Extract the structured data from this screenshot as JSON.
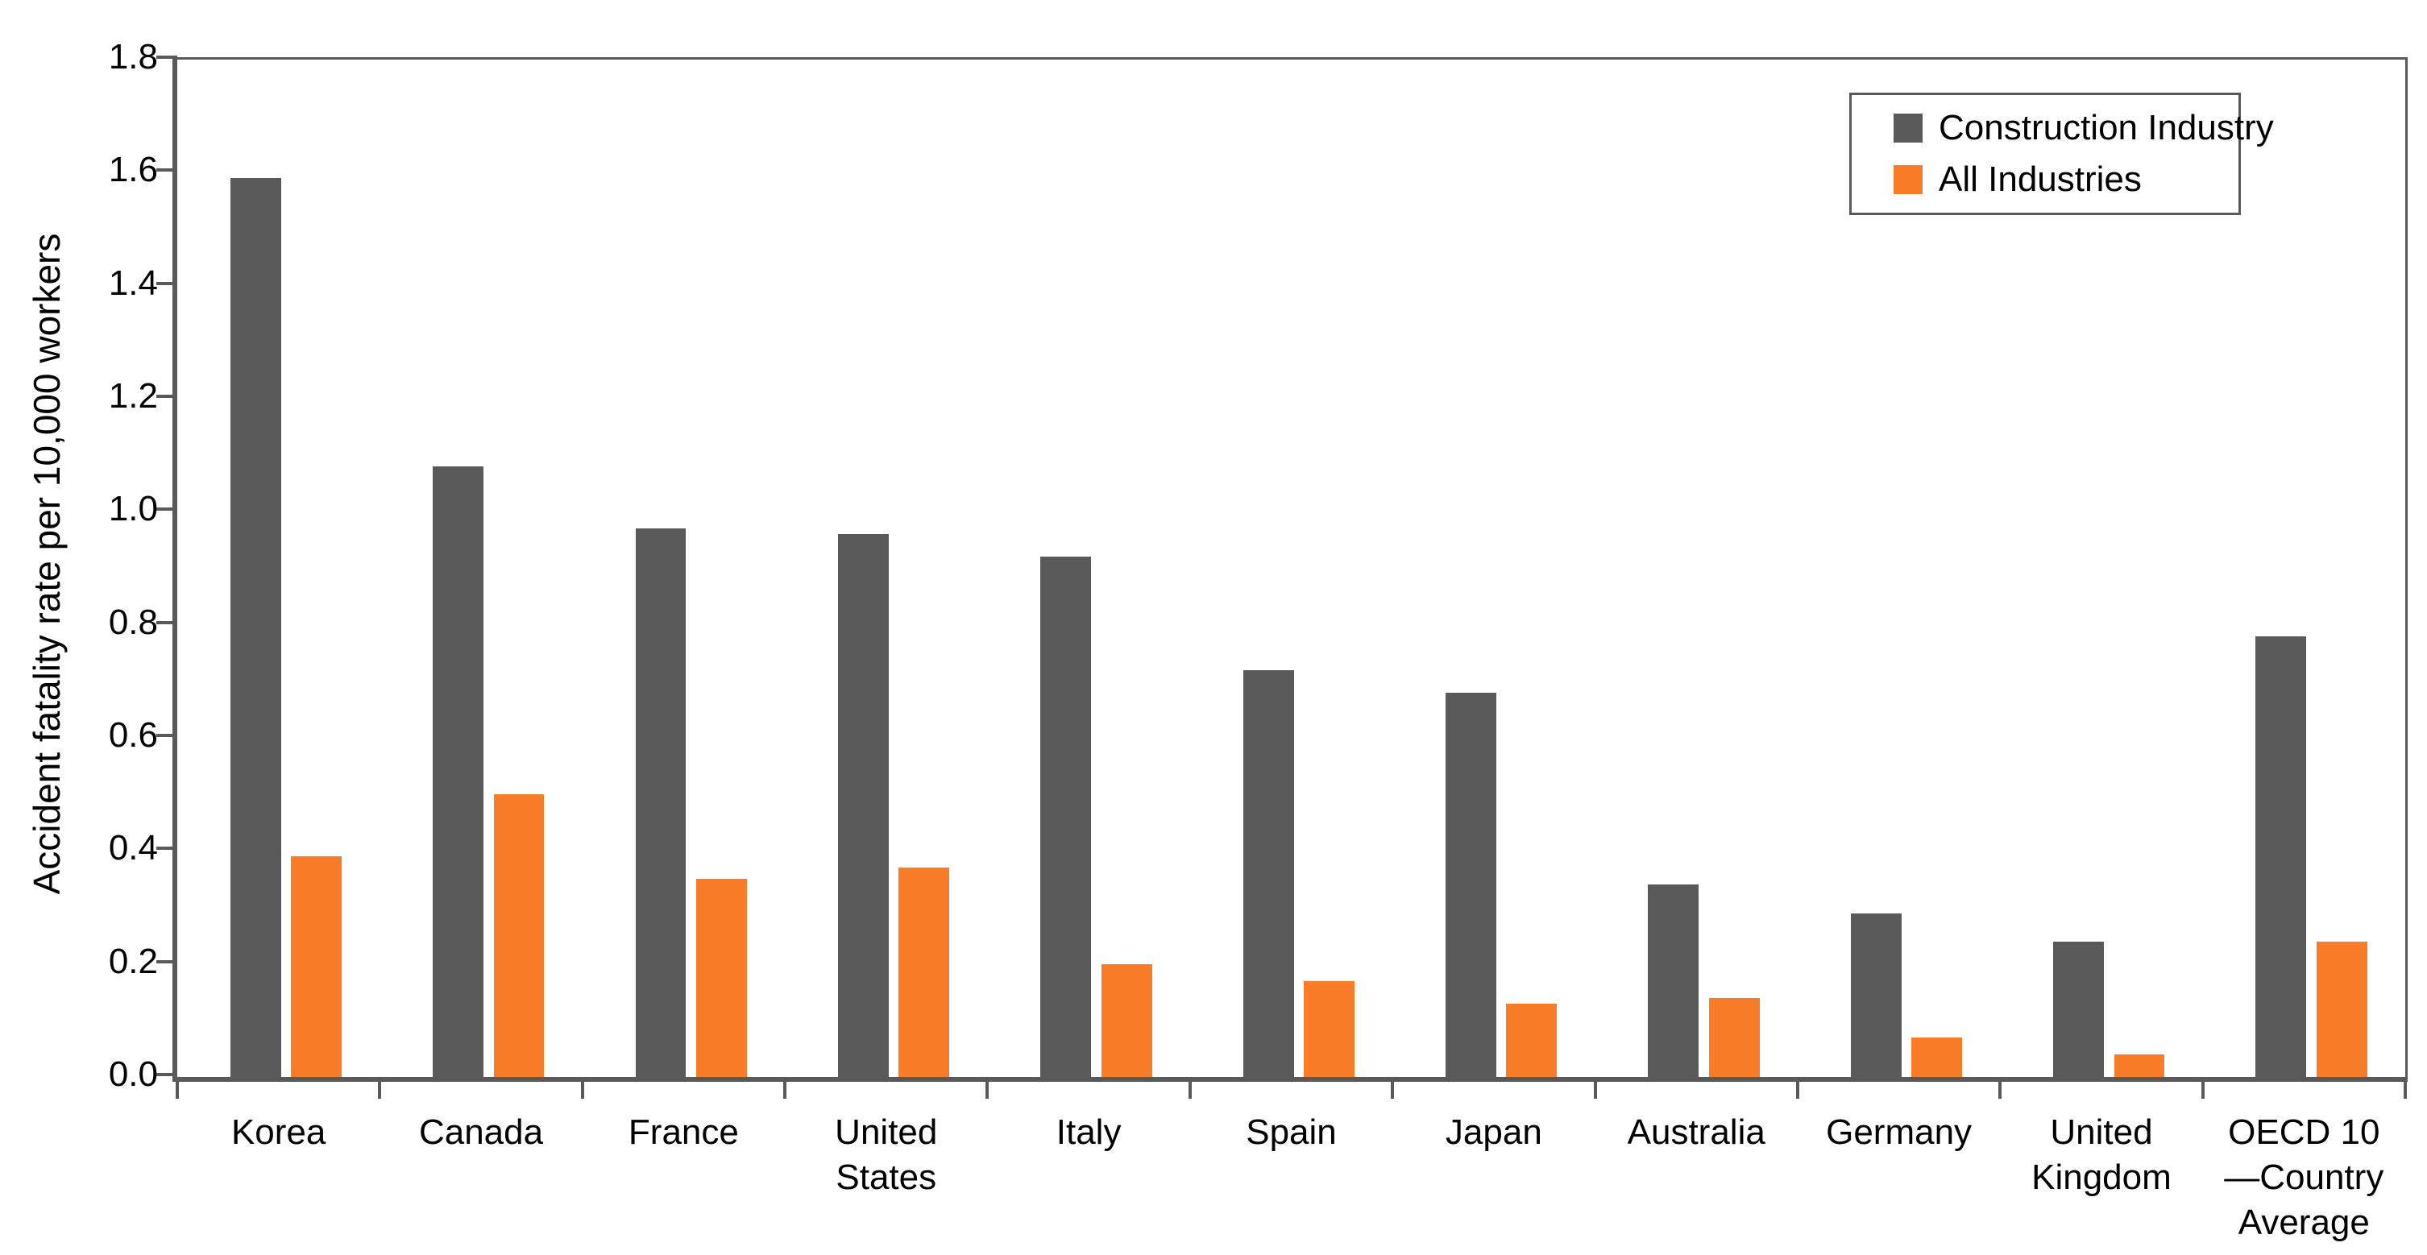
{
  "chart_data": {
    "type": "bar",
    "title": "",
    "categories": [
      "Korea",
      "Canada",
      "France",
      "United States",
      "Italy",
      "Spain",
      "Japan",
      "Australia",
      "Germany",
      "United Kingdom",
      "OECD 10—Country Average"
    ],
    "series": [
      {
        "name": "Construction Industry",
        "color": "#595959",
        "values": [
          1.59,
          1.08,
          0.97,
          0.96,
          0.92,
          0.72,
          0.68,
          0.34,
          0.29,
          0.24,
          0.78
        ]
      },
      {
        "name": "All Industries",
        "color": "#F97D28",
        "values": [
          0.39,
          0.5,
          0.35,
          0.37,
          0.2,
          0.17,
          0.13,
          0.14,
          0.07,
          0.04,
          0.24
        ]
      }
    ],
    "xlabel": "",
    "ylabel": "Accident fatality rate per 10,000 workers",
    "ylim": [
      0,
      1.8
    ],
    "ytick_step": 0.2,
    "ytick_labels": [
      "0.0",
      "0.2",
      "0.4",
      "0.6",
      "0.8",
      "1.0",
      "1.2",
      "1.4",
      "1.6",
      "1.8"
    ],
    "grid": false,
    "legend_position": "top-right"
  },
  "colors": {
    "axis": "#595959",
    "bar_construction": "#595959",
    "bar_all_industries": "#F97D28",
    "text": "#000000",
    "background": "#FFFFFF"
  }
}
